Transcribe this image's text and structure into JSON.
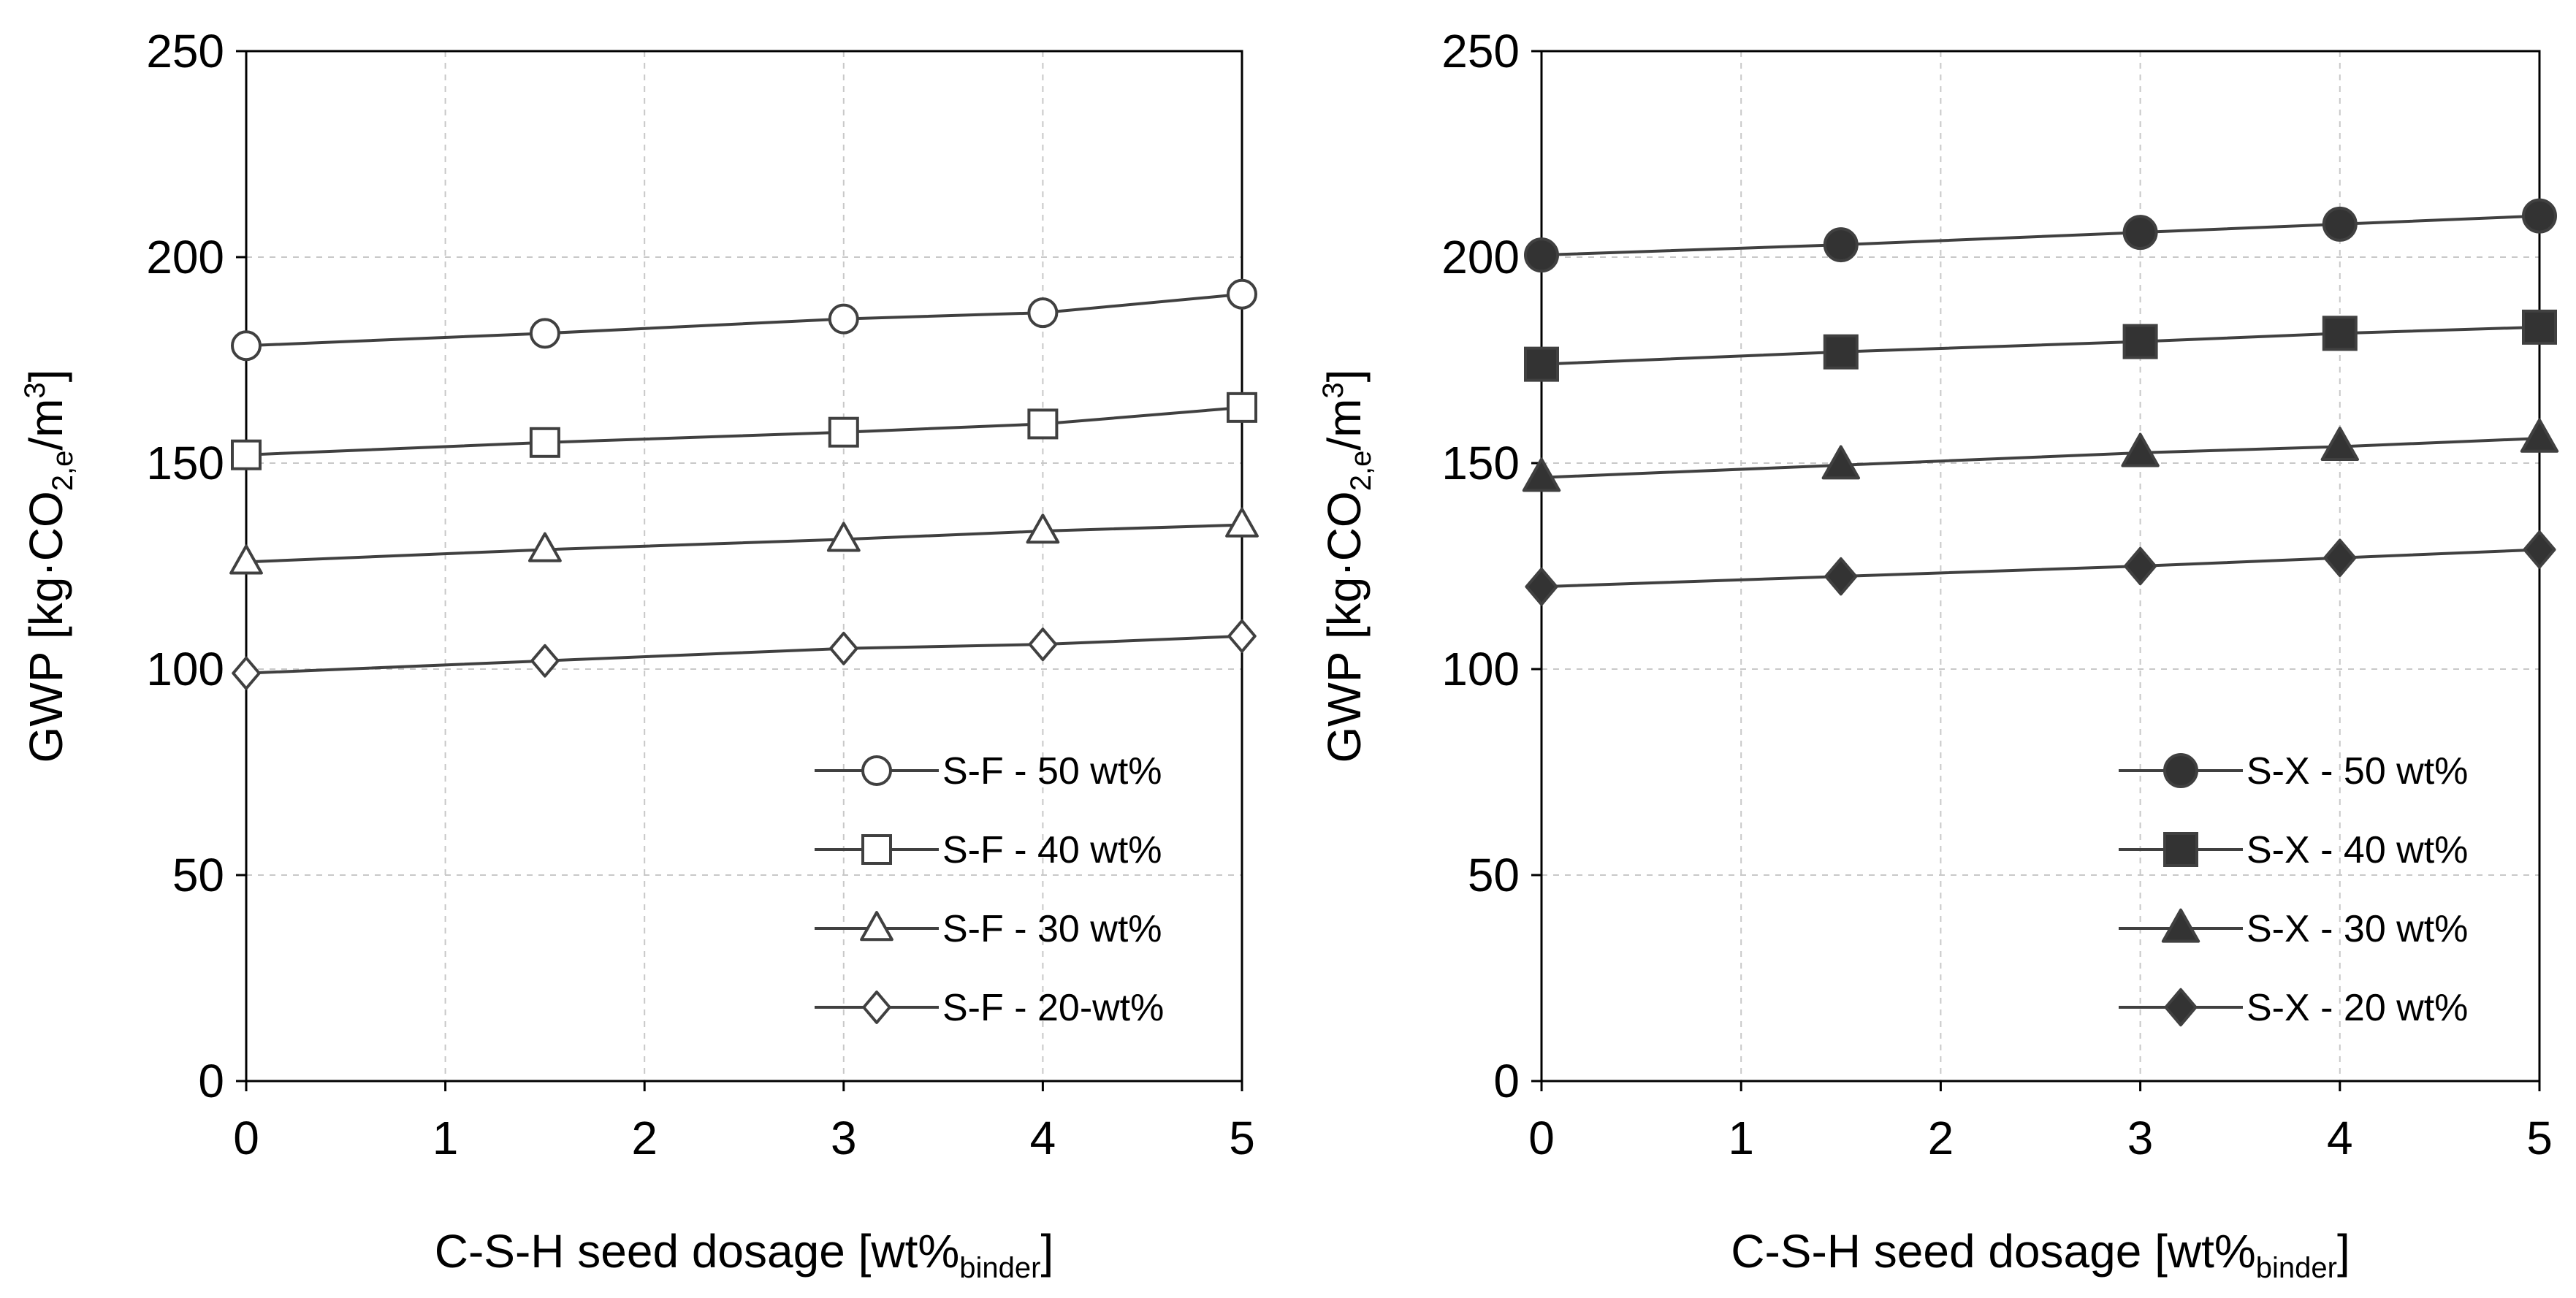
{
  "chart_data": [
    {
      "type": "line",
      "panel": "left",
      "xlabel": "C-S-H seed dosage [wt%",
      "xlabel_sub": "binder",
      "xlabel_end": "]",
      "ylabel_main": "GWP [kg·CO",
      "ylabel_sub": "2,e",
      "ylabel_mid": "/m",
      "ylabel_sup": "3",
      "ylabel_end": "]",
      "xlim": [
        0,
        5
      ],
      "ylim": [
        0,
        250
      ],
      "x_ticks": [
        0,
        1,
        2,
        3,
        4,
        5
      ],
      "y_ticks": [
        0,
        50,
        100,
        150,
        200,
        250
      ],
      "grid": true,
      "legend_position": "bottom-right",
      "marker_fill": "open",
      "x": [
        0,
        1.5,
        3,
        4,
        5
      ],
      "series": [
        {
          "name": "S-F - 50 wt%",
          "marker": "circle",
          "values": [
            178.5,
            181.5,
            185,
            186.5,
            191
          ]
        },
        {
          "name": "S-F - 40 wt%",
          "marker": "square",
          "values": [
            152,
            155,
            157.5,
            159.5,
            163.5
          ]
        },
        {
          "name": "S-F - 30 wt%",
          "marker": "triangle",
          "values": [
            126,
            129,
            131.5,
            133.5,
            135
          ]
        },
        {
          "name": "S-F - 20-wt%",
          "marker": "diamond",
          "values": [
            99,
            102,
            105,
            106,
            108
          ]
        }
      ]
    },
    {
      "type": "line",
      "panel": "right",
      "xlabel": "C-S-H seed dosage [wt%",
      "xlabel_sub": "binder",
      "xlabel_end": "]",
      "ylabel_main": "GWP [kg·CO",
      "ylabel_sub": "2,e",
      "ylabel_mid": "/m",
      "ylabel_sup": "3",
      "ylabel_end": "]",
      "xlim": [
        0,
        5
      ],
      "ylim": [
        0,
        250
      ],
      "x_ticks": [
        0,
        1,
        2,
        3,
        4,
        5
      ],
      "y_ticks": [
        0,
        50,
        100,
        150,
        200,
        250
      ],
      "grid": true,
      "legend_position": "bottom-right",
      "marker_fill": "filled",
      "x": [
        0,
        1.5,
        3,
        4,
        5
      ],
      "series": [
        {
          "name": "S-X - 50 wt%",
          "marker": "circle",
          "values": [
            200.5,
            203,
            206,
            208,
            210
          ]
        },
        {
          "name": "S-X - 40 wt%",
          "marker": "square",
          "values": [
            174,
            177,
            179.5,
            181.5,
            183
          ]
        },
        {
          "name": "S-X - 30 wt%",
          "marker": "triangle",
          "values": [
            146.5,
            149.5,
            152.5,
            154,
            156
          ]
        },
        {
          "name": "S-X - 20 wt%",
          "marker": "diamond",
          "values": [
            120,
            122.5,
            125,
            127,
            129
          ]
        }
      ]
    }
  ],
  "colors": {
    "line": "#404040",
    "axis": "#000000",
    "grid": "#c8c8c8",
    "open_fill": "#ffffff",
    "filled_fill": "#333333"
  }
}
